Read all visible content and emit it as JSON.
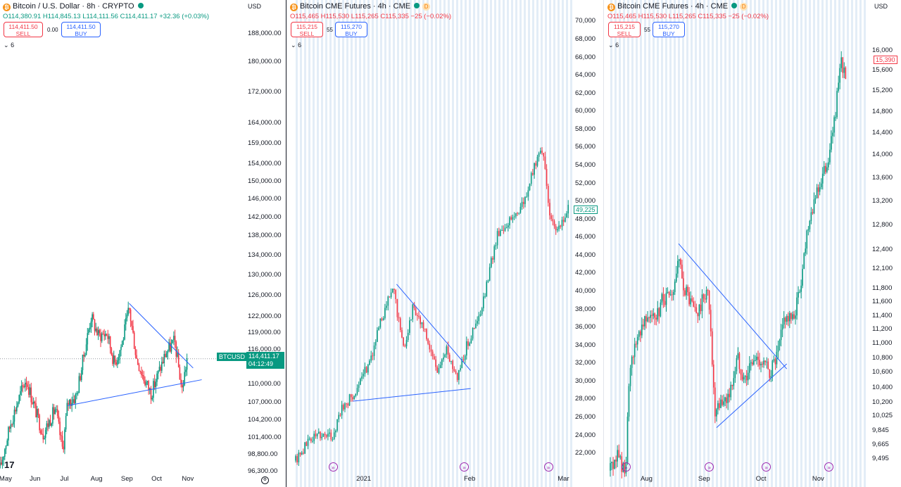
{
  "panels": [
    {
      "title": "Bitcoin / U.S. Dollar · 8h · CRYPTO",
      "status_color": "#089981",
      "ohlc": {
        "o": "114,380.91",
        "h": "114,845.13",
        "l": "114,111.56",
        "c": "114,411.17",
        "chg": "+32.36 (+0.03%)"
      },
      "sell": {
        "price": "114,411.50",
        "label": "SELL"
      },
      "buy": {
        "price": "114,411.50",
        "label": "BUY"
      },
      "spread": "0.00",
      "collapse_count": "6",
      "currency": "USD",
      "symbol_tag": "BTCUSD",
      "last_price": "114,411.17",
      "countdown": "04:12:49"
    },
    {
      "title": "Bitcoin CME Futures · 4h · CME",
      "status_color": "#089981",
      "badge": "D",
      "ohlc": {
        "o": "115,465",
        "h": "115,530",
        "l": "115,265",
        "c": "115,335",
        "chg": "−25 (−0.02%)"
      },
      "sell": {
        "price": "115,215",
        "label": "SELL"
      },
      "buy": {
        "price": "115,270",
        "label": "BUY"
      },
      "spread": "55",
      "collapse_count": "6",
      "last_price": "49,225"
    },
    {
      "title": "Bitcoin CME Futures · 4h · CME",
      "status_color": "#089981",
      "badge": "D",
      "ohlc": {
        "o": "115,465",
        "h": "115,530",
        "l": "115,265",
        "c": "115,335",
        "chg": "−25 (−0.02%)"
      },
      "sell": {
        "price": "115,215",
        "label": "SELL"
      },
      "buy": {
        "price": "115,270",
        "label": "BUY"
      },
      "spread": "55",
      "collapse_count": "6",
      "currency": "USD",
      "last_price": "15,390"
    }
  ],
  "colors": {
    "up": "#089981",
    "down": "#f23645",
    "trend": "#2962ff",
    "band": "#e3edf7",
    "event": "#9c27b0"
  },
  "chart_data": [
    {
      "type": "candlestick",
      "scale": "log",
      "ylim": [
        96300,
        190000
      ],
      "y_ticks": [
        "188,000.00",
        "180,000.00",
        "172,000.00",
        "164,000.00",
        "159,000.00",
        "154,000.00",
        "150,000.00",
        "146,000.00",
        "142,000.00",
        "138,000.00",
        "134,000.00",
        "130,000.00",
        "126,000.00",
        "122,000.00",
        "119,000.00",
        "116,000.00",
        "110,000.00",
        "107,000.00",
        "104,200.00",
        "101,400.00",
        "98,800.00",
        "96,300.00"
      ],
      "x_ticks": [
        "May",
        "Jun",
        "Jul",
        "Aug",
        "Sep",
        "Oct",
        "Nov"
      ],
      "x_domain": [
        "2025-05-01",
        "2025-11-15"
      ],
      "x_tick_positions": [
        0.02,
        0.145,
        0.27,
        0.395,
        0.52,
        0.645,
        0.77
      ],
      "close_path": [
        [
          "2025-05-01",
          96800
        ],
        [
          "2025-05-10",
          104000
        ],
        [
          "2025-05-22",
          111000
        ],
        [
          "2025-05-31",
          105000
        ],
        [
          "2025-06-05",
          102000
        ],
        [
          "2025-06-15",
          106000
        ],
        [
          "2025-06-21",
          99500
        ],
        [
          "2025-06-25",
          107000
        ],
        [
          "2025-07-02",
          108000
        ],
        [
          "2025-07-09",
          116000
        ],
        [
          "2025-07-14",
          122000
        ],
        [
          "2025-07-20",
          118500
        ],
        [
          "2025-07-27",
          119000
        ],
        [
          "2025-08-02",
          113500
        ],
        [
          "2025-08-08",
          117000
        ],
        [
          "2025-08-14",
          123500
        ],
        [
          "2025-08-20",
          114500
        ],
        [
          "2025-08-26",
          111000
        ],
        [
          "2025-09-01",
          108500
        ],
        [
          "2025-09-06",
          111500
        ],
        [
          "2025-09-13",
          115500
        ],
        [
          "2025-09-20",
          117500
        ],
        [
          "2025-09-26",
          109000
        ],
        [
          "2025-09-30",
          114411
        ]
      ],
      "trendlines": [
        [
          [
            "2025-08-14",
            124500
          ],
          [
            "2025-10-05",
            112800
          ]
        ],
        [
          [
            "2025-06-25",
            106500
          ],
          [
            "2025-10-12",
            110800
          ]
        ]
      ]
    },
    {
      "type": "candlestick",
      "scale": "linear",
      "ylim": [
        21000,
        70500
      ],
      "y_ticks": [
        "70,000",
        "68,000",
        "66,000",
        "64,000",
        "62,000",
        "60,000",
        "58,000",
        "56,000",
        "54,000",
        "52,000",
        "50,000",
        "48,000",
        "46,000",
        "44,000",
        "42,000",
        "40,000",
        "38,000",
        "36,000",
        "34,000",
        "32,000",
        "30,000",
        "28,000",
        "26,000",
        "24,000",
        "22,000"
      ],
      "x_ticks": [
        "2021",
        "Feb",
        "Mar"
      ],
      "x_domain": [
        "2020-12-10",
        "2021-03-02"
      ],
      "x_tick_positions": [
        0.24,
        0.63,
        0.97
      ],
      "close_path": [
        [
          "2020-12-10",
          21200
        ],
        [
          "2020-12-14",
          23500
        ],
        [
          "2020-12-17",
          24200
        ],
        [
          "2020-12-21",
          23800
        ],
        [
          "2020-12-23",
          26500
        ],
        [
          "2020-12-27",
          28500
        ],
        [
          "2020-12-29",
          29500
        ],
        [
          "2021-01-02",
          33500
        ],
        [
          "2021-01-05",
          37500
        ],
        [
          "2021-01-08",
          40500
        ],
        [
          "2021-01-11",
          33500
        ],
        [
          "2021-01-14",
          38500
        ],
        [
          "2021-01-17",
          35800
        ],
        [
          "2021-01-21",
          31200
        ],
        [
          "2021-01-24",
          33500
        ],
        [
          "2021-01-27",
          30500
        ],
        [
          "2021-01-30",
          34200
        ],
        [
          "2021-02-03",
          37500
        ],
        [
          "2021-02-08",
          46500
        ],
        [
          "2021-02-12",
          48000
        ],
        [
          "2021-02-16",
          50000
        ],
        [
          "2021-02-21",
          56500
        ],
        [
          "2021-02-24",
          47500
        ],
        [
          "2021-02-26",
          46500
        ],
        [
          "2021-03-01",
          49225
        ]
      ],
      "trendlines": [
        [
          [
            "2021-01-09",
            40800
          ],
          [
            "2021-01-31",
            31200
          ]
        ],
        [
          [
            "2020-12-27",
            27800
          ],
          [
            "2021-01-31",
            29200
          ]
        ]
      ],
      "events": [
        "2020-12-21",
        "2021-01-29",
        "2021-02-23"
      ]
    },
    {
      "type": "candlestick",
      "scale": "log",
      "ylim": [
        9450,
        16500
      ],
      "y_ticks": [
        "16,000",
        "15,600",
        "15,200",
        "14,800",
        "14,400",
        "14,000",
        "13,600",
        "13,200",
        "12,800",
        "12,400",
        "12,100",
        "11,800",
        "11,600",
        "11,400",
        "11,200",
        "11,000",
        "10,800",
        "10,600",
        "10,400",
        "10,200",
        "10,025",
        "9,845",
        "9,665",
        "9,495"
      ],
      "x_ticks": [
        "Aug",
        "Sep",
        "Oct",
        "Nov"
      ],
      "x_domain": [
        "2020-07-12",
        "2020-11-24"
      ],
      "x_tick_positions": [
        0.14,
        0.365,
        0.59,
        0.81
      ],
      "close_path": [
        [
          "2020-07-12",
          9350
        ],
        [
          "2020-07-16",
          9550
        ],
        [
          "2020-07-20",
          9300
        ],
        [
          "2020-07-22",
          10500
        ],
        [
          "2020-07-26",
          11100
        ],
        [
          "2020-08-01",
          11500
        ],
        [
          "2020-08-05",
          11300
        ],
        [
          "2020-08-09",
          11700
        ],
        [
          "2020-08-13",
          11600
        ],
        [
          "2020-08-17",
          12200
        ],
        [
          "2020-08-19",
          11900
        ],
        [
          "2020-08-23",
          11600
        ],
        [
          "2020-08-27",
          11400
        ],
        [
          "2020-09-01",
          11800
        ],
        [
          "2020-09-03",
          11200
        ],
        [
          "2020-09-05",
          10000
        ],
        [
          "2020-09-09",
          10200
        ],
        [
          "2020-09-13",
          10300
        ],
        [
          "2020-09-17",
          10800
        ],
        [
          "2020-09-21",
          10500
        ],
        [
          "2020-09-24",
          10700
        ],
        [
          "2020-09-28",
          10800
        ],
        [
          "2020-10-04",
          10600
        ],
        [
          "2020-10-08",
          10800
        ],
        [
          "2020-10-12",
          11400
        ],
        [
          "2020-10-16",
          11300
        ],
        [
          "2020-10-20",
          11800
        ],
        [
          "2020-10-24",
          12800
        ],
        [
          "2020-10-28",
          13300
        ],
        [
          "2020-11-01",
          13600
        ],
        [
          "2020-11-05",
          14100
        ],
        [
          "2020-11-09",
          15200
        ],
        [
          "2020-11-11",
          15800
        ],
        [
          "2020-11-13",
          15390
        ]
      ],
      "trendlines": [
        [
          [
            "2020-08-17",
            12500
          ],
          [
            "2020-10-13",
            10650
          ]
        ],
        [
          [
            "2020-09-06",
            9880
          ],
          [
            "2020-10-13",
            10720
          ]
        ]
      ],
      "events": [
        "2020-07-20",
        "2020-09-02",
        "2020-10-02",
        "2020-11-04"
      ]
    }
  ]
}
